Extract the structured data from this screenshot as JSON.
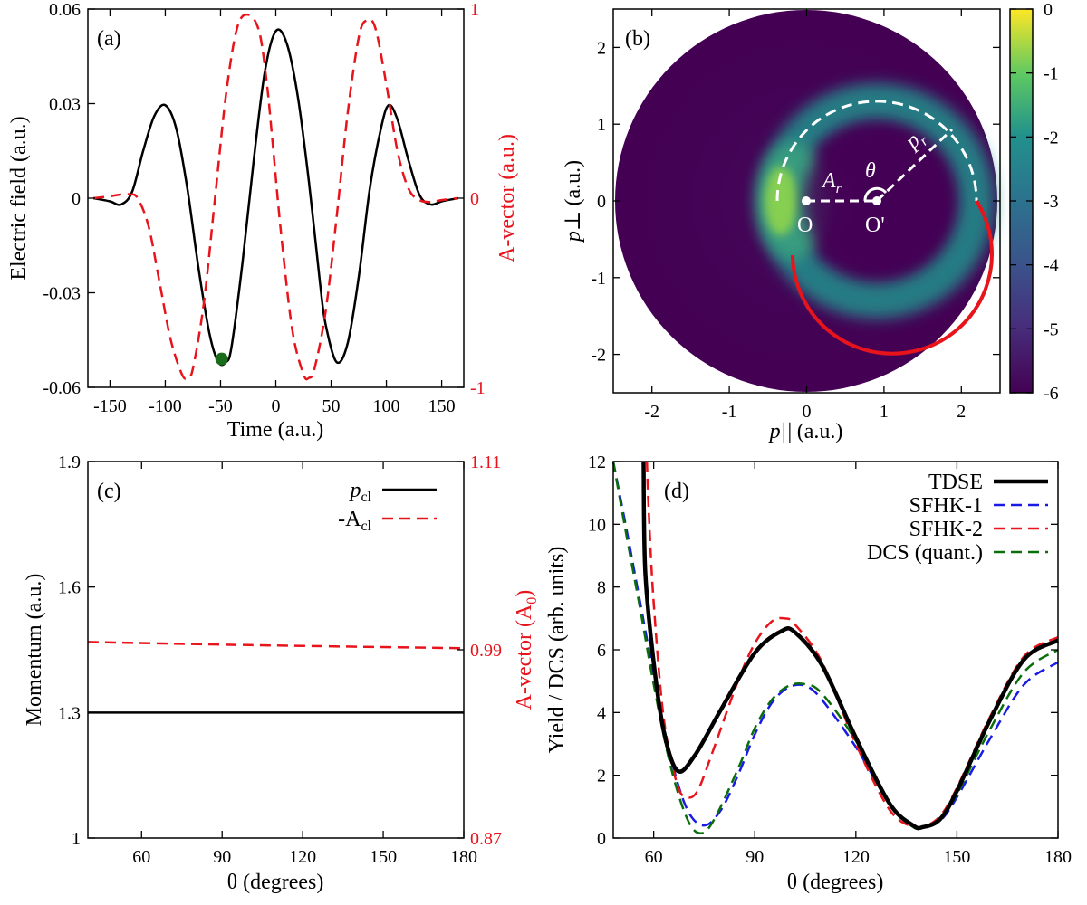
{
  "colors": {
    "black": "#000000",
    "red": "#e8141c",
    "blue": "#1a1ae6",
    "green": "#0a6e0a",
    "dark_green": "#1a6b1a",
    "white": "#ffffff"
  },
  "chart_data": [
    {
      "panel": "(a)",
      "type": "line",
      "xlabel": "Time (a.u.)",
      "ylabel": "Electric field (a.u.)",
      "y2label": "A-vector (a.u.)",
      "xlim": [
        -170,
        170
      ],
      "ylim": [
        -0.06,
        0.06
      ],
      "y2lim": [
        -1,
        1
      ],
      "xticks": [
        "-150",
        "-100",
        "-50",
        "0",
        "50",
        "100",
        "150"
      ],
      "xtick_values": [
        -150,
        -100,
        -50,
        0,
        50,
        100,
        150
      ],
      "yticks": [
        "0.06",
        "0.03",
        "0",
        "-0.03",
        "-0.06"
      ],
      "ytick_values": [
        0.06,
        0.03,
        0,
        -0.03,
        -0.06
      ],
      "y2ticks": [
        "1",
        "0",
        "-1"
      ],
      "y2tick_values": [
        1,
        0,
        -1
      ],
      "series": [
        {
          "name": "Electric field",
          "axis": "left",
          "style": "solid",
          "color": "black",
          "x": [
            -165,
            -150,
            -140,
            -130,
            -120,
            -110,
            -100,
            -90,
            -80,
            -70,
            -60,
            -52,
            -45,
            -40,
            -30,
            -20,
            -10,
            0,
            10,
            20,
            30,
            40,
            45,
            55,
            65,
            75,
            85,
            95,
            102,
            110,
            120,
            130,
            140,
            150,
            165
          ],
          "values": [
            0,
            -0.001,
            -0.002,
            0.002,
            0.015,
            0.026,
            0.0295,
            0.022,
            0.003,
            -0.022,
            -0.043,
            -0.052,
            -0.052,
            -0.047,
            -0.02,
            0.012,
            0.04,
            0.053,
            0.049,
            0.032,
            0.005,
            -0.027,
            -0.04,
            -0.052,
            -0.046,
            -0.025,
            0.003,
            0.022,
            0.0295,
            0.025,
            0.012,
            0.001,
            -0.002,
            -0.001,
            0
          ]
        },
        {
          "name": "A-vector",
          "axis": "right",
          "style": "dashed",
          "color": "red",
          "x": [
            -165,
            -150,
            -140,
            -132,
            -125,
            -115,
            -105,
            -95,
            -85,
            -80,
            -75,
            -65,
            -55,
            -45,
            -35,
            -25,
            -15,
            -8,
            -3,
            5,
            15,
            25,
            30,
            35,
            45,
            55,
            65,
            75,
            82,
            90,
            100,
            110,
            120,
            130,
            140,
            150,
            165
          ],
          "values": [
            0,
            0.01,
            0.02,
            0.02,
            0,
            -0.15,
            -0.45,
            -0.75,
            -0.93,
            -0.95,
            -0.9,
            -0.55,
            0,
            0.55,
            0.9,
            0.97,
            0.88,
            0.6,
            0.3,
            -0.2,
            -0.7,
            -0.93,
            -0.95,
            -0.9,
            -0.6,
            -0.1,
            0.45,
            0.85,
            0.94,
            0.9,
            0.6,
            0.25,
            0.05,
            -0.01,
            -0.02,
            -0.01,
            0
          ]
        }
      ],
      "marker": {
        "x": -49,
        "y": -0.051,
        "color": "dark green"
      }
    },
    {
      "panel": "(b)",
      "type": "heatmap",
      "xlabel": "p||",
      "xlabel_unit": "(a.u.)",
      "ylabel": "p⊥",
      "ylabel_unit": "(a.u.)",
      "xlim": [
        -2.5,
        2.5
      ],
      "ylim": [
        -2.5,
        2.5
      ],
      "xticks": [
        "-2",
        "-1",
        "0",
        "1",
        "2"
      ],
      "xtick_values": [
        -2,
        -1,
        0,
        1,
        2
      ],
      "yticks": [
        "2",
        "1",
        "0",
        "-1",
        "-2"
      ],
      "ytick_values": [
        2,
        1,
        0,
        -1,
        -2
      ],
      "colorbar": {
        "ticks": [
          "0",
          "-1",
          "-2",
          "-3",
          "-4",
          "-5",
          "-6"
        ],
        "tick_values": [
          0,
          -1,
          -2,
          -3,
          -4,
          -5,
          -6
        ],
        "range": [
          -6,
          0
        ]
      },
      "circle_radius": 2.5,
      "ring_center": [
        0.93,
        0
      ],
      "ring_radius": 1.3,
      "annotations": {
        "O": "O",
        "O_prime": "O'",
        "A_r": "A",
        "A_r_sub": "r",
        "p_r": "p",
        "p_r_sub": "r",
        "theta": "θ"
      },
      "origin": [
        0,
        0
      ]
    },
    {
      "panel": "(c)",
      "type": "line",
      "xlabel": "θ (degrees)",
      "ylabel": "Momentum (a.u.)",
      "y2label": "A-vector (A",
      "y2label_sub": "0",
      "y2label_end": ")",
      "xlim": [
        40,
        180
      ],
      "ylim": [
        1,
        1.9
      ],
      "y2lim": [
        0.87,
        1.11
      ],
      "xticks": [
        "60",
        "90",
        "120",
        "150",
        "180"
      ],
      "xtick_values": [
        60,
        90,
        120,
        150,
        180
      ],
      "yticks": [
        "1.9",
        "1.6",
        "1.3",
        "1"
      ],
      "ytick_values": [
        1.9,
        1.6,
        1.3,
        1
      ],
      "y2ticks": [
        "1.11",
        "0.99",
        "0.87"
      ],
      "y2tick_values": [
        1.11,
        0.99,
        0.87
      ],
      "legend": {
        "p_cl": "p",
        "p_cl_sub": "cl",
        "A_cl": "-A",
        "A_cl_sub": "cl"
      },
      "series": [
        {
          "name": "p_cl",
          "axis": "left",
          "style": "solid",
          "color": "black",
          "x": [
            40,
            180
          ],
          "values": [
            1.3,
            1.3
          ]
        },
        {
          "name": "-A_cl",
          "axis": "right",
          "style": "dashed",
          "color": "red",
          "x": [
            40,
            100,
            180
          ],
          "values": [
            0.995,
            0.993,
            0.991
          ]
        }
      ]
    },
    {
      "panel": "(d)",
      "type": "line",
      "xlabel": "θ (degrees)",
      "ylabel": "Yield / DCS (arb. units)",
      "xlim": [
        48,
        180
      ],
      "ylim": [
        0,
        12
      ],
      "xticks": [
        "60",
        "90",
        "120",
        "150",
        "180"
      ],
      "xtick_values": [
        60,
        90,
        120,
        150,
        180
      ],
      "yticks": [
        "12",
        "10",
        "8",
        "6",
        "4",
        "2",
        "0"
      ],
      "ytick_values": [
        12,
        10,
        8,
        6,
        4,
        2,
        0
      ],
      "legend": [
        "TDSE",
        "SFHK-1",
        "SFHK-2",
        "DCS (quant.)"
      ],
      "series": [
        {
          "name": "TDSE",
          "style": "solid-thick",
          "color": "black",
          "x": [
            57,
            57.5,
            60,
            63,
            67,
            72,
            80,
            90,
            98,
            102,
            110,
            120,
            130,
            137,
            140,
            145,
            150,
            160,
            170,
            180
          ],
          "values": [
            12,
            8.5,
            5.6,
            3.4,
            2.15,
            2.6,
            4.1,
            5.9,
            6.6,
            6.55,
            5.5,
            3.2,
            1.1,
            0.4,
            0.35,
            0.6,
            1.5,
            3.8,
            5.7,
            6.3
          ]
        },
        {
          "name": "SFHK-1",
          "style": "dashed",
          "color": "blue",
          "x": [
            48,
            52,
            56,
            60,
            65,
            70,
            75,
            80,
            85,
            90,
            95,
            100,
            105,
            110,
            120,
            130,
            137,
            140,
            145,
            150,
            160,
            170,
            180
          ],
          "values": [
            12,
            9.8,
            7.5,
            5.2,
            2.6,
            0.9,
            0.4,
            0.9,
            2.0,
            3.3,
            4.3,
            4.8,
            4.85,
            4.4,
            2.9,
            1.1,
            0.4,
            0.35,
            0.55,
            1.3,
            3.2,
            4.9,
            5.6
          ]
        },
        {
          "name": "SFHK-2",
          "style": "dashed",
          "color": "red",
          "x": [
            58,
            58.5,
            60,
            63,
            67,
            70,
            73,
            77,
            85,
            90,
            95,
            99,
            102,
            110,
            120,
            130,
            137,
            140,
            145,
            150,
            160,
            170,
            180
          ],
          "values": [
            12,
            10.5,
            7.5,
            3.8,
            1.7,
            1.3,
            1.5,
            2.6,
            5.0,
            6.2,
            6.9,
            7.0,
            6.8,
            5.6,
            3.0,
            0.9,
            0.35,
            0.35,
            0.7,
            1.6,
            3.9,
            5.8,
            6.4
          ]
        },
        {
          "name": "DCS (quant.)",
          "style": "dashed",
          "color": "green",
          "x": [
            48,
            52,
            56,
            60,
            65,
            70,
            74,
            78,
            85,
            90,
            95,
            100,
            105,
            110,
            120,
            130,
            137,
            140,
            145,
            150,
            160,
            170,
            180
          ],
          "values": [
            12,
            9.6,
            7.3,
            4.9,
            2.3,
            0.6,
            0.15,
            0.6,
            2.2,
            3.5,
            4.4,
            4.85,
            4.9,
            4.6,
            3.1,
            1.1,
            0.35,
            0.35,
            0.6,
            1.4,
            3.5,
            5.3,
            6.0
          ]
        }
      ]
    }
  ]
}
